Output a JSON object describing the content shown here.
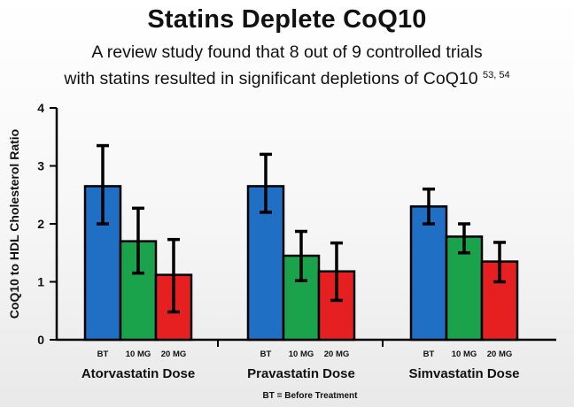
{
  "header": {
    "title": "Statins Deplete CoQ10",
    "subtitle_line1": "A review study found that 8 out of 9 controlled trials",
    "subtitle_line2": "with statins resulted in significant depletions of CoQ10",
    "subtitle_refs": "53, 54"
  },
  "chart_data": {
    "type": "bar",
    "title": "",
    "ylabel": "CoQ10 to HDL Cholesterol Ratio",
    "ylim": [
      0,
      4
    ],
    "yticks": [
      0,
      1,
      2,
      3,
      4
    ],
    "grid": false,
    "groups": [
      {
        "label": "Atorvastatin Dose",
        "bars": [
          {
            "label": "BT",
            "value": 2.65,
            "err_low": 2.0,
            "err_high": 3.35,
            "color": "#1f6fc5"
          },
          {
            "label": "10 MG",
            "value": 1.7,
            "err_low": 1.15,
            "err_high": 2.27,
            "color": "#1aa34a"
          },
          {
            "label": "20 MG",
            "value": 1.12,
            "err_low": 0.48,
            "err_high": 1.73,
            "color": "#e62020"
          }
        ]
      },
      {
        "label": "Pravastatin Dose",
        "bars": [
          {
            "label": "BT",
            "value": 2.65,
            "err_low": 2.2,
            "err_high": 3.2,
            "color": "#1f6fc5"
          },
          {
            "label": "10 MG",
            "value": 1.45,
            "err_low": 1.02,
            "err_high": 1.87,
            "color": "#1aa34a"
          },
          {
            "label": "20 MG",
            "value": 1.18,
            "err_low": 0.68,
            "err_high": 1.67,
            "color": "#e62020"
          }
        ]
      },
      {
        "label": "Simvastatin Dose",
        "bars": [
          {
            "label": "BT",
            "value": 2.3,
            "err_low": 2.0,
            "err_high": 2.6,
            "color": "#1f6fc5"
          },
          {
            "label": "10 MG",
            "value": 1.78,
            "err_low": 1.5,
            "err_high": 2.0,
            "color": "#1aa34a"
          },
          {
            "label": "20 MG",
            "value": 1.35,
            "err_low": 1.0,
            "err_high": 1.68,
            "color": "#e62020"
          }
        ]
      }
    ],
    "footnote": "BT = Before Treatment"
  }
}
